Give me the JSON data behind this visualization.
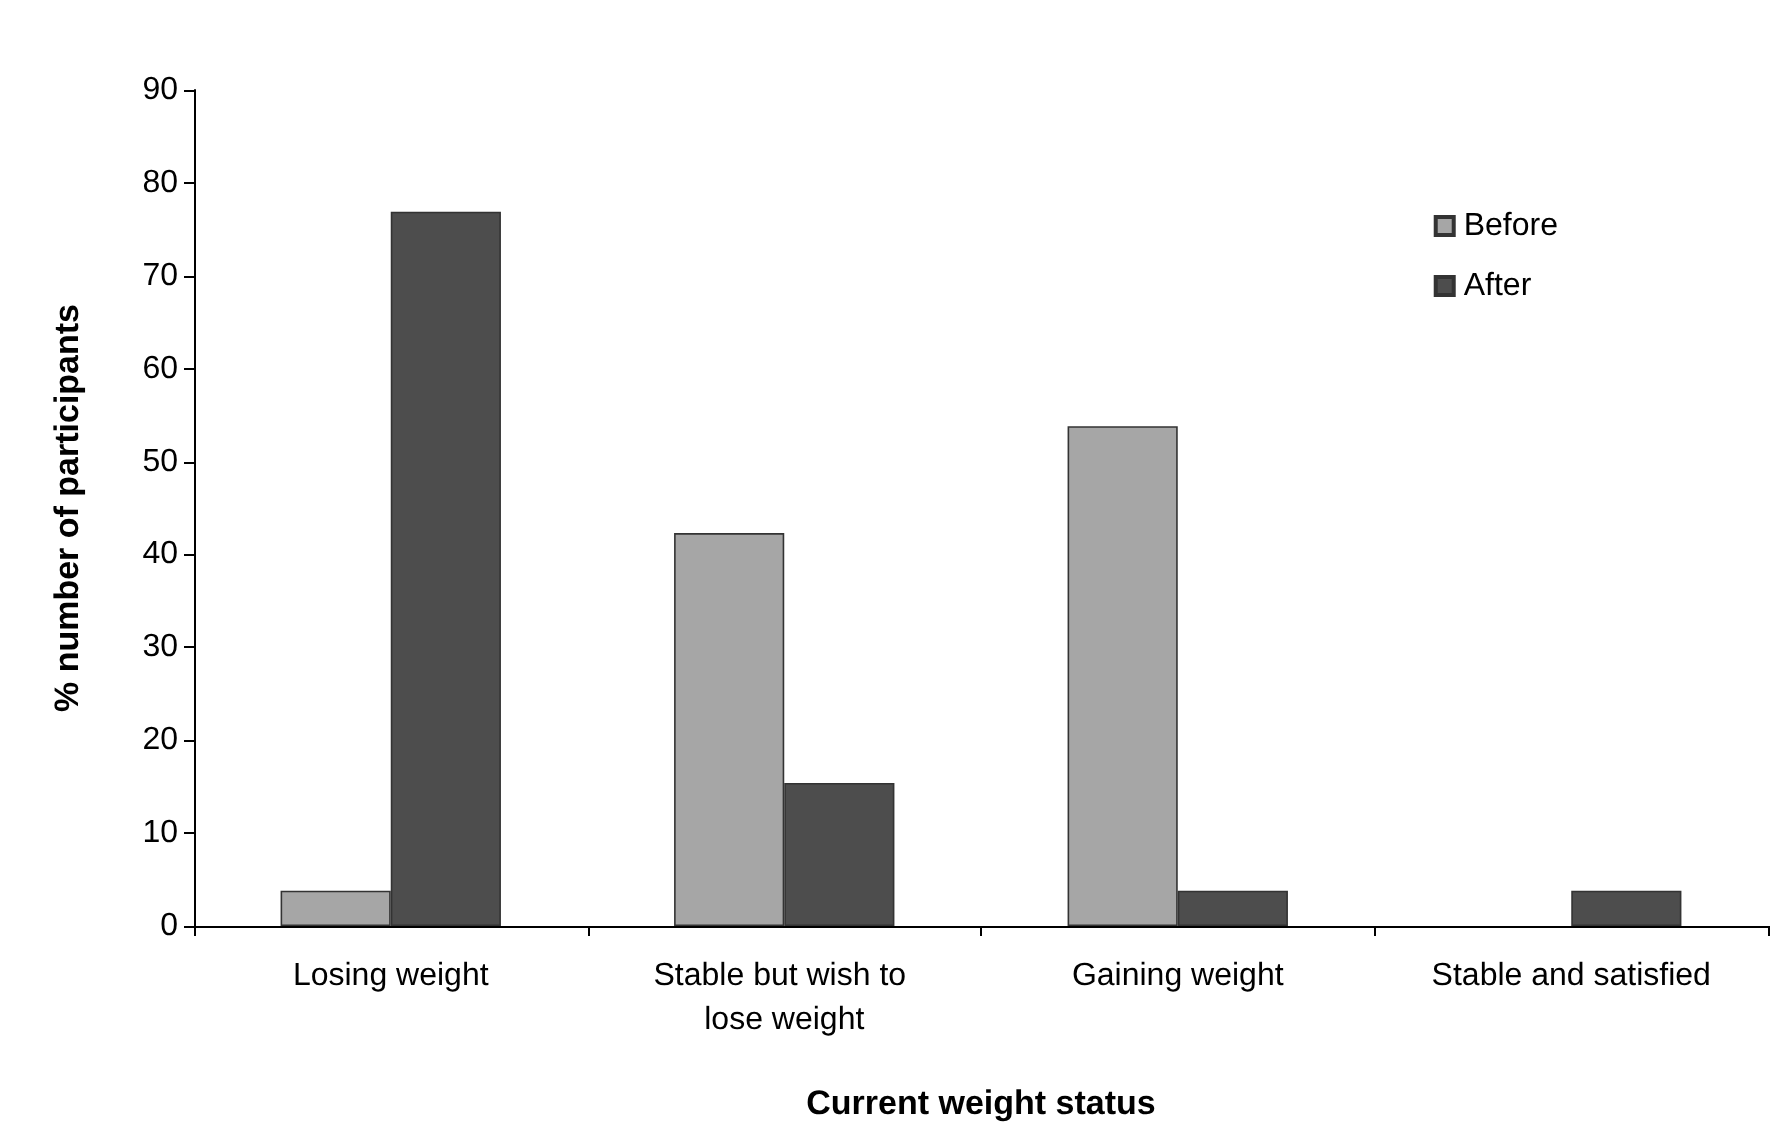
{
  "chart_data": {
    "type": "bar",
    "xlabel": "Current weight status",
    "ylabel": "% number of participants",
    "categories": [
      "Losing weight",
      "Stable but wish to lose weight",
      "Gaining weight",
      "Stable and satisfied"
    ],
    "series": [
      {
        "name": "Before",
        "color": "#a6a6a6",
        "values": [
          3.8,
          42.3,
          53.8,
          0
        ]
      },
      {
        "name": "After",
        "color": "#4d4d4d",
        "values": [
          76.9,
          15.4,
          3.8,
          3.8
        ]
      }
    ],
    "ylim": [
      0,
      90
    ],
    "yticks": [
      0,
      10,
      20,
      30,
      40,
      50,
      60,
      70,
      80,
      90
    ],
    "grid": false,
    "legend": "top right"
  }
}
